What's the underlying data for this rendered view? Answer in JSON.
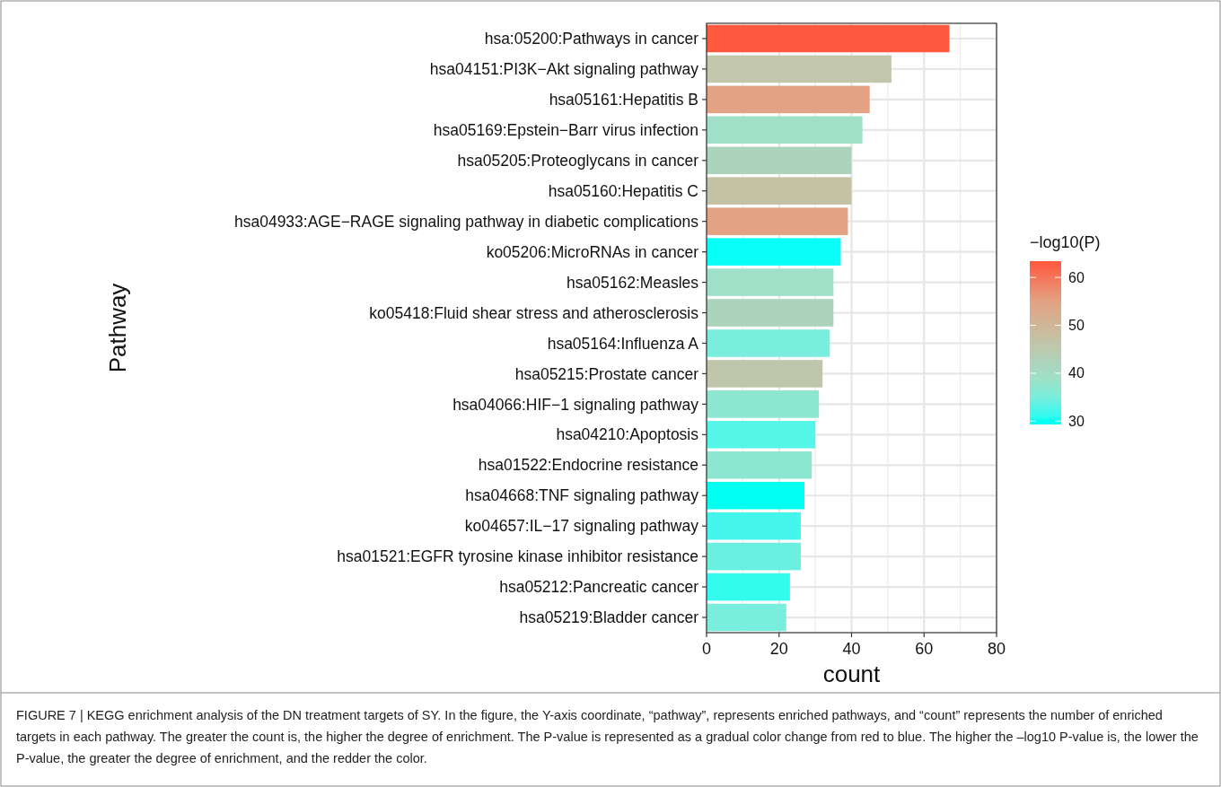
{
  "chart_data": {
    "type": "bar",
    "orientation": "horizontal",
    "xlabel": "count",
    "ylabel": "Pathway",
    "clabel": "−log10(P)",
    "categories": [
      "hsa:05200:Pathways in cancer",
      "hsa04151:PI3K−Akt signaling pathway",
      "hsa05161:Hepatitis B",
      "hsa05169:Epstein−Barr virus infection",
      "hsa05205:Proteoglycans in cancer",
      "hsa05160:Hepatitis C",
      "hsa04933:AGE−RAGE signaling pathway in diabetic complications",
      "ko05206:MicroRNAs in cancer",
      "hsa05162:Measles",
      "ko05418:Fluid shear stress and atherosclerosis",
      "hsa05164:Influenza A",
      "hsa05215:Prostate cancer",
      "hsa04066:HIF−1 signaling pathway",
      "hsa04210:Apoptosis",
      "hsa01522:Endocrine resistance",
      "hsa04668:TNF signaling pathway",
      "ko04657:IL−17 signaling pathway",
      "hsa01521:EGFR tyrosine kinase inhibitor resistance",
      "hsa05212:Pancreatic cancer",
      "hsa05219:Bladder cancer"
    ],
    "values": [
      67,
      51,
      45,
      43,
      40,
      40,
      39,
      37,
      35,
      35,
      34,
      32,
      31,
      30,
      29,
      27,
      26,
      26,
      23,
      22
    ],
    "cvalues": [
      63,
      46,
      55,
      39,
      42,
      47,
      55,
      29.5,
      39,
      42,
      35,
      46,
      37,
      33,
      37,
      30,
      32,
      34,
      31,
      35
    ],
    "colors": [
      "#ff5a40",
      "#c2c6aa",
      "#e2a283",
      "#a0e0c8",
      "#acd4bc",
      "#c4c2a4",
      "#e2a283",
      "#08fff8",
      "#a0e0c8",
      "#acd4bc",
      "#7aeedc",
      "#c0c6aa",
      "#8ce6d0",
      "#55f5e8",
      "#8ce6d0",
      "#02fff2",
      "#44f6ec",
      "#6af0e0",
      "#33fcee",
      "#7aeedc"
    ],
    "xlim": [
      0,
      80
    ],
    "xticks": [
      0,
      20,
      40,
      60,
      80
    ],
    "clim": [
      29.3,
      63.4
    ],
    "cticks": [
      30,
      40,
      50,
      60
    ],
    "grid": true,
    "annotations": [
      "FIGURE 7 | KEGG enrichment analysis of the DN treatment targets of SY. In the figure, the Y-axis coordinate, “pathway”, represents enriched pathways, and “count” represents the number of enriched targets in each pathway. The greater the count is, the higher the degree of enrichment. The P-value is represented as a gradual color change from red to blue. The higher the –log10 P-value is, the lower the P-value, the greater the degree of enrichment, and the redder the color."
    ]
  }
}
